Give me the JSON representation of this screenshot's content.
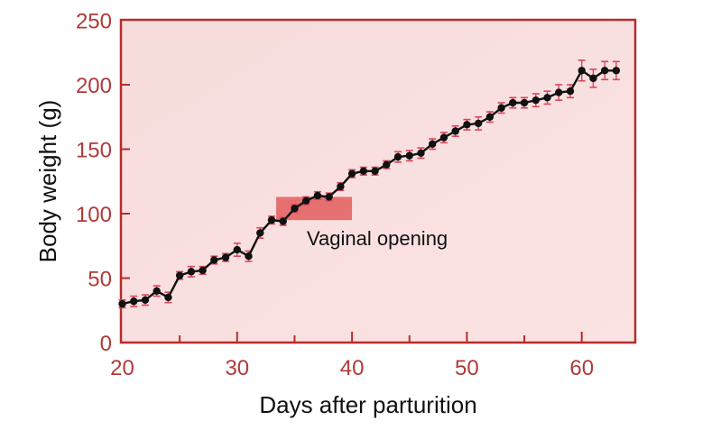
{
  "chart_data": {
    "type": "line",
    "title": "",
    "xlabel": "Days after parturition",
    "ylabel": "Body weight (g)",
    "xlim": [
      20,
      65
    ],
    "ylim": [
      0,
      250
    ],
    "x_ticks": [
      20,
      30,
      40,
      50,
      60
    ],
    "x_minor_ticks": [
      25,
      35,
      45,
      55
    ],
    "y_ticks": [
      0,
      50,
      100,
      150,
      200,
      250
    ],
    "grid": false,
    "legend": null,
    "error_bars": true,
    "series": [
      {
        "name": "Body weight",
        "x": [
          20,
          21,
          22,
          23,
          24,
          25,
          26,
          27,
          28,
          29,
          30,
          31,
          32,
          33,
          34,
          35,
          36,
          37,
          38,
          39,
          40,
          41,
          42,
          43,
          44,
          45,
          46,
          47,
          48,
          49,
          50,
          51,
          52,
          53,
          54,
          55,
          56,
          57,
          58,
          59,
          60,
          61,
          62,
          63
        ],
        "values": [
          30,
          32,
          33,
          40,
          35,
          52,
          55,
          56,
          64,
          66,
          72,
          67,
          85,
          95,
          94,
          104,
          110,
          114,
          113,
          121,
          131,
          133,
          133,
          138,
          144,
          145,
          147,
          154,
          159,
          164,
          169,
          170,
          175,
          182,
          186,
          186,
          188,
          190,
          194,
          195,
          211,
          205,
          211,
          211
        ],
        "errors": [
          3,
          4,
          4,
          4,
          4,
          3,
          4,
          3,
          3,
          3,
          5,
          4,
          4,
          3,
          3,
          3,
          3,
          3,
          3,
          3,
          3,
          3,
          3,
          3,
          4,
          4,
          4,
          4,
          4,
          4,
          4,
          5,
          4,
          4,
          4,
          4,
          5,
          5,
          6,
          5,
          8,
          7,
          7,
          7
        ]
      }
    ],
    "annotations": [
      {
        "text": "Vaginal opening",
        "x": 36,
        "y": 81,
        "type": "label"
      },
      {
        "type": "rect",
        "x0": 33.4,
        "x1": 40,
        "y0": 95,
        "y1": 113,
        "color": "#e35d5d"
      }
    ]
  },
  "colors": {
    "plot_background": "#f8dcdc",
    "axis": "#b82c2c",
    "tick_label": "#b03a3a",
    "line": "#111111",
    "error_bar": "#d8465a",
    "highlight": "#e35d5d"
  }
}
